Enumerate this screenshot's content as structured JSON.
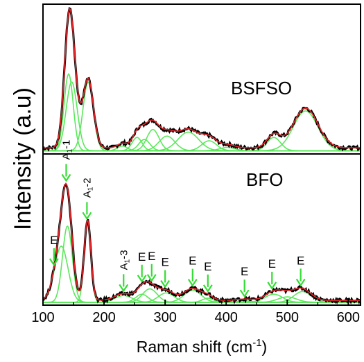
{
  "chart_data": {
    "type": "line",
    "xlabel": "Raman shift (cm",
    "xlabel_sup": "-1",
    "xlabel_end": ")",
    "ylabel": "Intensity (a.u)",
    "xlim": [
      100,
      620
    ],
    "xticks": [
      100,
      200,
      300,
      400,
      500,
      600
    ],
    "grid": false,
    "colors": {
      "data": "#000000",
      "fit": "#e8262a",
      "peaks": "#5be85b",
      "arrows": "#33dd33",
      "frame": "#000000"
    },
    "panels": [
      {
        "name": "BSFSO",
        "label": "BSFSO",
        "ylim": [
          0,
          1.1
        ],
        "baseline": 0.03,
        "peaks": [
          {
            "center": 142,
            "amp": 0.58,
            "width": 7.5
          },
          {
            "center": 147,
            "amp": 0.52,
            "width": 9
          },
          {
            "center": 174,
            "amp": 0.52,
            "width": 8.5
          },
          {
            "center": 230,
            "amp": 0.035,
            "width": 8
          },
          {
            "center": 254,
            "amp": 0.1,
            "width": 8
          },
          {
            "center": 266,
            "amp": 0.085,
            "width": 9
          },
          {
            "center": 280,
            "amp": 0.16,
            "width": 10
          },
          {
            "center": 303,
            "amp": 0.11,
            "width": 13
          },
          {
            "center": 338,
            "amp": 0.14,
            "width": 17
          },
          {
            "center": 372,
            "amp": 0.075,
            "width": 12
          },
          {
            "center": 402,
            "amp": 0.025,
            "width": 12
          },
          {
            "center": 478,
            "amp": 0.1,
            "width": 11
          },
          {
            "center": 530,
            "amp": 0.3,
            "width": 20
          }
        ]
      },
      {
        "name": "BFO",
        "label": "BFO",
        "ylim": [
          0,
          1.1
        ],
        "baseline": 0.02,
        "peaks": [
          {
            "center": 130,
            "amp": 0.42,
            "width": 11
          },
          {
            "center": 140,
            "amp": 0.57,
            "width": 8
          },
          {
            "center": 173,
            "amp": 0.6,
            "width": 5.5
          },
          {
            "center": 232,
            "amp": 0.05,
            "width": 14
          },
          {
            "center": 262,
            "amp": 0.06,
            "width": 10
          },
          {
            "center": 275,
            "amp": 0.1,
            "width": 12
          },
          {
            "center": 302,
            "amp": 0.07,
            "width": 13
          },
          {
            "center": 345,
            "amp": 0.09,
            "width": 14
          },
          {
            "center": 370,
            "amp": 0.03,
            "width": 9
          },
          {
            "center": 430,
            "amp": 0.01,
            "width": 12
          },
          {
            "center": 478,
            "amp": 0.06,
            "width": 14
          },
          {
            "center": 500,
            "amp": 0.04,
            "width": 15
          },
          {
            "center": 525,
            "amp": 0.08,
            "width": 14
          }
        ],
        "modes": [
          {
            "label": "E",
            "sub": "",
            "x": 118,
            "rotate": false
          },
          {
            "label": "A",
            "sub": "1",
            "suffix": "-1",
            "x": 138,
            "rotate": true
          },
          {
            "label": "A",
            "sub": "1",
            "suffix": "-2",
            "x": 172,
            "rotate": true
          },
          {
            "label": "A",
            "sub": "1",
            "suffix": "-3",
            "x": 232,
            "rotate": true
          },
          {
            "label": "E",
            "sub": "",
            "x": 262,
            "rotate": false
          },
          {
            "label": "E",
            "sub": "",
            "x": 278,
            "rotate": false
          },
          {
            "label": "E",
            "sub": "",
            "x": 300,
            "rotate": false
          },
          {
            "label": "E",
            "sub": "",
            "x": 345,
            "rotate": false
          },
          {
            "label": "E",
            "sub": "",
            "x": 370,
            "rotate": false
          },
          {
            "label": "E",
            "sub": "",
            "x": 430,
            "rotate": false
          },
          {
            "label": "E",
            "sub": "",
            "x": 475,
            "rotate": false
          },
          {
            "label": "E",
            "sub": "",
            "x": 522,
            "rotate": false
          }
        ]
      }
    ]
  }
}
